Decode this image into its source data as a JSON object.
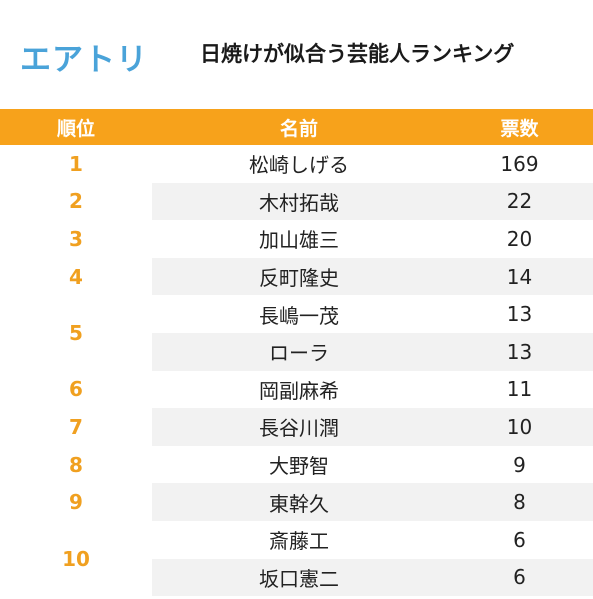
{
  "logo": "エアトリ",
  "chart_data": {
    "type": "table",
    "title": "日焼けが似合う芸能人ランキング",
    "columns": [
      "順位",
      "名前",
      "票数"
    ],
    "rank_groups": [
      {
        "rank": "1",
        "span": 1
      },
      {
        "rank": "2",
        "span": 1
      },
      {
        "rank": "3",
        "span": 1
      },
      {
        "rank": "4",
        "span": 1
      },
      {
        "rank": "5",
        "span": 2
      },
      {
        "rank": "6",
        "span": 1
      },
      {
        "rank": "7",
        "span": 1
      },
      {
        "rank": "8",
        "span": 1
      },
      {
        "rank": "9",
        "span": 1
      },
      {
        "rank": "10",
        "span": 2
      }
    ],
    "rows": [
      {
        "name": "松崎しげる",
        "votes": "169"
      },
      {
        "name": "木村拓哉",
        "votes": "22"
      },
      {
        "name": "加山雄三",
        "votes": "20"
      },
      {
        "name": "反町隆史",
        "votes": "14"
      },
      {
        "name": "長嶋一茂",
        "votes": "13"
      },
      {
        "name": "ローラ",
        "votes": "13"
      },
      {
        "name": "岡副麻希",
        "votes": "11"
      },
      {
        "name": "長谷川潤",
        "votes": "10"
      },
      {
        "name": "大野智",
        "votes": "9"
      },
      {
        "name": "東幹久",
        "votes": "8"
      },
      {
        "name": "斎藤工",
        "votes": "6"
      },
      {
        "name": "坂口憲二",
        "votes": "6"
      }
    ],
    "colors": {
      "header": "#f7a21b",
      "rank": "#f0a020",
      "shade": "#f2f2f2",
      "logo": "#4aa3d9"
    }
  }
}
